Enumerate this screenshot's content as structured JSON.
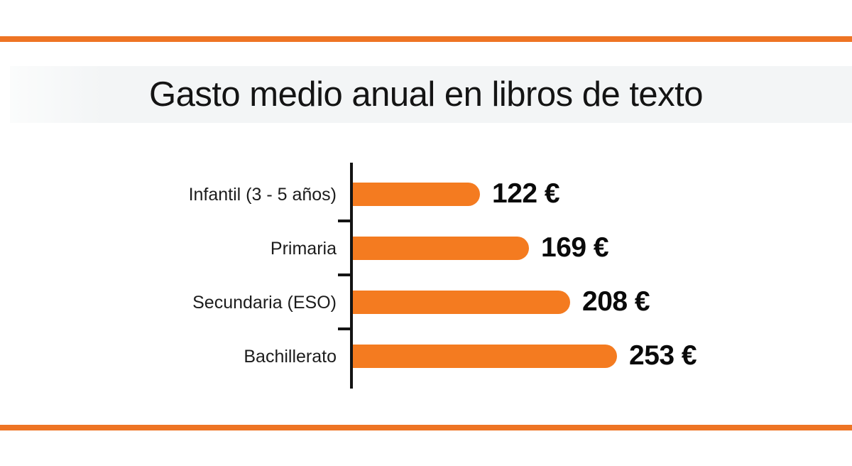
{
  "chart_data": {
    "type": "bar",
    "orientation": "horizontal",
    "title": "Gasto medio anual en libros de texto",
    "categories": [
      "Infantil (3 - 5 años)",
      "Primaria",
      "Secundaria (ESO)",
      "Bachillerato"
    ],
    "values": [
      122,
      169,
      208,
      253
    ],
    "value_labels": [
      "122 €",
      "169 €",
      "208 €",
      "253 €"
    ],
    "unit": "€",
    "xlim": [
      0,
      253
    ],
    "grid": false,
    "legend": false,
    "colors": {
      "bar": "#f47b20",
      "accent_stripe": "#ee7424",
      "axis": "#141414",
      "title_band": "#f3f5f6",
      "text": "#141414"
    }
  }
}
